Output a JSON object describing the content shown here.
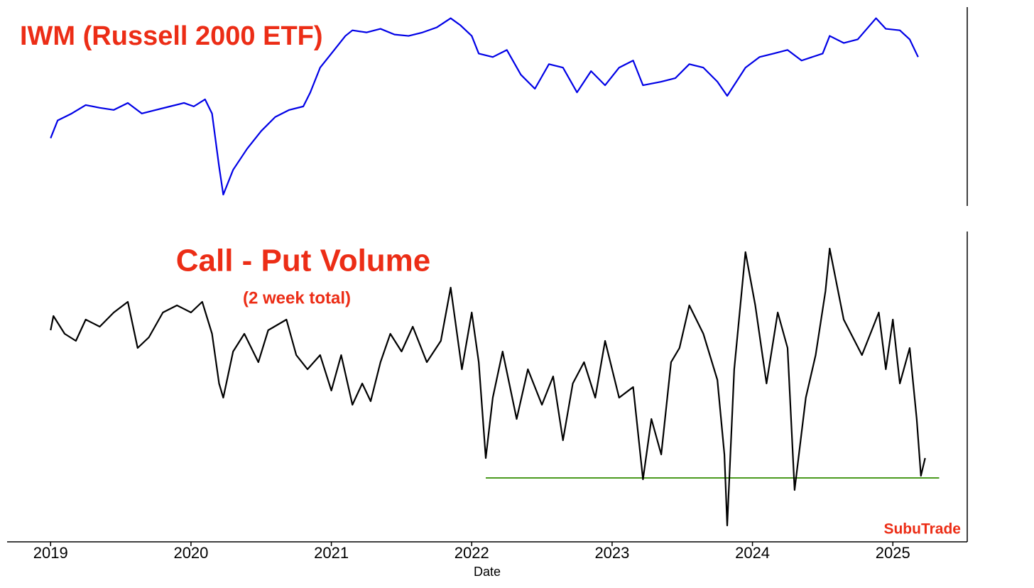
{
  "chart_data": [
    {
      "type": "line",
      "title": "IWM (Russell 2000 ETF)",
      "xlim": [
        2018.69,
        2025.53
      ],
      "ylim": [
        92,
        249
      ],
      "series": [
        {
          "name": "IWM",
          "color": "#0000e6",
          "x": [
            2019.0,
            2019.05,
            2019.15,
            2019.25,
            2019.35,
            2019.45,
            2019.55,
            2019.65,
            2019.75,
            2019.85,
            2019.95,
            2020.02,
            2020.1,
            2020.15,
            2020.2,
            2020.23,
            2020.3,
            2020.4,
            2020.5,
            2020.6,
            2020.7,
            2020.8,
            2020.85,
            2020.92,
            2021.0,
            2021.1,
            2021.15,
            2021.25,
            2021.35,
            2021.45,
            2021.55,
            2021.65,
            2021.75,
            2021.85,
            2021.92,
            2022.0,
            2022.05,
            2022.15,
            2022.25,
            2022.35,
            2022.45,
            2022.55,
            2022.65,
            2022.75,
            2022.85,
            2022.95,
            2023.05,
            2023.15,
            2023.22,
            2023.35,
            2023.45,
            2023.55,
            2023.65,
            2023.75,
            2023.82,
            2023.95,
            2024.05,
            2024.15,
            2024.25,
            2024.35,
            2024.5,
            2024.55,
            2024.65,
            2024.75,
            2024.88,
            2024.95,
            2025.05,
            2025.12,
            2025.18
          ],
          "values": [
            146.5,
            160.7,
            166.3,
            173.1,
            170.9,
            169.2,
            174.8,
            166.3,
            169.2,
            172.0,
            174.8,
            172.0,
            177.7,
            166.3,
            123.8,
            101.1,
            121.0,
            138.0,
            152.2,
            163.5,
            169.2,
            172.0,
            183.3,
            203.2,
            214.5,
            228.7,
            233.2,
            231.5,
            234.4,
            229.8,
            228.7,
            231.5,
            235.5,
            242.9,
            237.2,
            228.7,
            214.5,
            211.7,
            217.4,
            197.5,
            186.2,
            206.0,
            203.2,
            183.3,
            200.4,
            189.0,
            203.2,
            208.9,
            189.0,
            191.9,
            194.7,
            206.0,
            203.2,
            191.9,
            180.5,
            203.2,
            211.7,
            214.5,
            217.4,
            208.9,
            214.5,
            228.7,
            223.0,
            225.9,
            242.9,
            234.4,
            233.2,
            225.9,
            211.7
          ]
        }
      ]
    },
    {
      "type": "line",
      "title": "Call - Put Volume",
      "subtitle": "(2 week total)",
      "annotation": "SubuTrade",
      "xlabel": "Date",
      "xlim": [
        2018.69,
        2025.53
      ],
      "ylim": [
        -63,
        370
      ],
      "xticks": [
        2019,
        2020,
        2021,
        2022,
        2023,
        2024,
        2025
      ],
      "reference_line": {
        "value": 27,
        "x": [
          2022.1,
          2025.33
        ],
        "color": "#4a9a1e"
      },
      "series": [
        {
          "name": "Call - Put Volume",
          "color": "#000000",
          "x": [
            2019.0,
            2019.02,
            2019.1,
            2019.18,
            2019.25,
            2019.35,
            2019.45,
            2019.55,
            2019.62,
            2019.7,
            2019.8,
            2019.9,
            2020.0,
            2020.08,
            2020.15,
            2020.2,
            2020.23,
            2020.3,
            2020.38,
            2020.48,
            2020.55,
            2020.68,
            2020.75,
            2020.83,
            2020.92,
            2021.0,
            2021.07,
            2021.15,
            2021.22,
            2021.28,
            2021.35,
            2021.42,
            2021.5,
            2021.58,
            2021.68,
            2021.78,
            2021.85,
            2021.93,
            2022.0,
            2022.05,
            2022.1,
            2022.15,
            2022.22,
            2022.32,
            2022.4,
            2022.5,
            2022.58,
            2022.65,
            2022.72,
            2022.8,
            2022.88,
            2022.95,
            2023.05,
            2023.15,
            2023.22,
            2023.28,
            2023.35,
            2023.42,
            2023.48,
            2023.55,
            2023.65,
            2023.75,
            2023.8,
            2023.82,
            2023.87,
            2023.95,
            2024.02,
            2024.1,
            2024.18,
            2024.25,
            2024.3,
            2024.38,
            2024.45,
            2024.52,
            2024.55,
            2024.65,
            2024.78,
            2024.9,
            2024.95,
            2025.0,
            2025.05,
            2025.12,
            2025.17,
            2025.2,
            2025.23
          ],
          "values": [
            235,
            255,
            230,
            220,
            250,
            240,
            260,
            275,
            210,
            225,
            260,
            270,
            260,
            275,
            230,
            160,
            140,
            205,
            230,
            190,
            235,
            250,
            200,
            180,
            200,
            150,
            200,
            130,
            160,
            135,
            190,
            230,
            205,
            240,
            190,
            220,
            295,
            180,
            260,
            190,
            55,
            140,
            205,
            110,
            180,
            130,
            170,
            80,
            160,
            190,
            140,
            220,
            140,
            155,
            25,
            110,
            60,
            190,
            210,
            270,
            230,
            165,
            60,
            -40,
            180,
            345,
            270,
            160,
            260,
            210,
            10,
            140,
            200,
            290,
            350,
            250,
            200,
            260,
            180,
            250,
            160,
            210,
            110,
            30,
            55
          ]
        }
      ]
    }
  ]
}
